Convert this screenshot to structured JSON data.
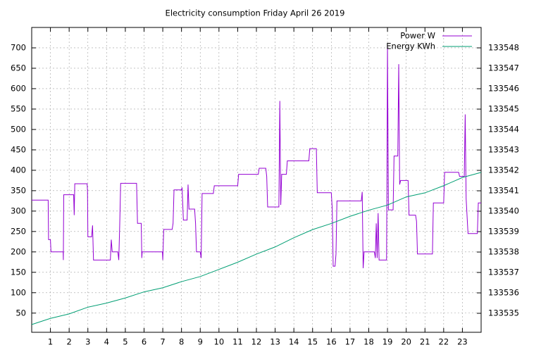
{
  "chart_data": {
    "type": "line",
    "title": "Electricity consumption Friday April 26 2019",
    "xlim": [
      0,
      24
    ],
    "xticks": [
      1,
      2,
      3,
      4,
      5,
      6,
      7,
      8,
      9,
      10,
      11,
      12,
      13,
      14,
      15,
      16,
      17,
      18,
      19,
      20,
      21,
      22,
      23
    ],
    "ylim": [
      3,
      750
    ],
    "yticks": [
      50,
      100,
      150,
      200,
      250,
      300,
      350,
      400,
      450,
      500,
      550,
      600,
      650,
      700
    ],
    "y2lim": [
      133534.07,
      133549
    ],
    "y2ticks": [
      133535,
      133536,
      133537,
      133538,
      133539,
      133540,
      133541,
      133542,
      133543,
      133544,
      133545,
      133546,
      133547,
      133548
    ],
    "grid": true,
    "legend": "top right",
    "series": [
      {
        "name": "Power W",
        "color": "#9400d3",
        "x": [
          0,
          0.88,
          0.9,
          1.0,
          1.03,
          1.68,
          1.69,
          1.71,
          2.24,
          2.27,
          2.3,
          2.96,
          2.98,
          3.0,
          3.2,
          3.25,
          3.3,
          4.2,
          4.25,
          4.3,
          4.6,
          4.65,
          4.7,
          4.75,
          5.6,
          5.65,
          5.85,
          5.88,
          5.9,
          6.98,
          7.0,
          7.05,
          7.5,
          7.55,
          7.6,
          8.0,
          8.03,
          8.1,
          8.3,
          8.35,
          8.4,
          8.7,
          8.75,
          8.8,
          9.0,
          9.05,
          9.1,
          9.7,
          9.75,
          11.0,
          11.05,
          12.1,
          12.15,
          12.5,
          12.55,
          12.6,
          13.2,
          13.25,
          13.3,
          13.35,
          13.6,
          13.65,
          14.8,
          14.85,
          15.2,
          15.25,
          16.0,
          16.05,
          16.1,
          16.2,
          16.25,
          16.3,
          17.6,
          17.65,
          17.7,
          17.75,
          18.3,
          18.35,
          18.4,
          18.45,
          18.5,
          18.55,
          18.95,
          18.97,
          19.0,
          19.05,
          19.3,
          19.35,
          19.55,
          19.6,
          19.65,
          19.7,
          20.1,
          20.15,
          20.5,
          20.55,
          20.6,
          21.4,
          21.45,
          22.0,
          22.05,
          22.8,
          22.85,
          23.1,
          23.15,
          23.2,
          23.3,
          23.8,
          23.85,
          24
        ],
        "values": [
          327,
          327,
          230,
          230,
          200,
          200,
          180,
          340,
          340,
          290,
          367,
          367,
          350,
          237,
          237,
          265,
          180,
          180,
          230,
          200,
          200,
          180,
          265,
          368,
          368,
          270,
          270,
          185,
          200,
          200,
          180,
          255,
          255,
          270,
          352,
          352,
          358,
          278,
          278,
          365,
          305,
          305,
          270,
          200,
          200,
          185,
          343,
          343,
          362,
          362,
          390,
          390,
          405,
          405,
          385,
          310,
          310,
          570,
          315,
          390,
          390,
          423,
          423,
          453,
          453,
          345,
          345,
          305,
          165,
          165,
          195,
          325,
          325,
          347,
          160,
          200,
          200,
          185,
          270,
          185,
          295,
          180,
          180,
          365,
          705,
          303,
          303,
          435,
          435,
          660,
          365,
          375,
          375,
          290,
          290,
          275,
          195,
          195,
          320,
          320,
          395,
          395,
          385,
          385,
          537,
          330,
          245,
          245,
          320,
          320
        ]
      },
      {
        "name": "Energy KWh",
        "color": "#009e73",
        "axis": "y2",
        "x": [
          0,
          1,
          2,
          3,
          4,
          5,
          6,
          7,
          8,
          9,
          10,
          11,
          12,
          13,
          14,
          15,
          16,
          17,
          18,
          19,
          20,
          21,
          22,
          23,
          24
        ],
        "values": [
          133534.45,
          133534.75,
          133534.97,
          133535.3,
          133535.5,
          133535.75,
          133536.05,
          133536.25,
          133536.55,
          133536.8,
          133537.15,
          133537.5,
          133537.9,
          133538.25,
          133538.7,
          133539.1,
          133539.4,
          133539.75,
          133540.05,
          133540.3,
          133540.7,
          133540.9,
          133541.25,
          133541.65,
          133541.9
        ]
      }
    ]
  }
}
